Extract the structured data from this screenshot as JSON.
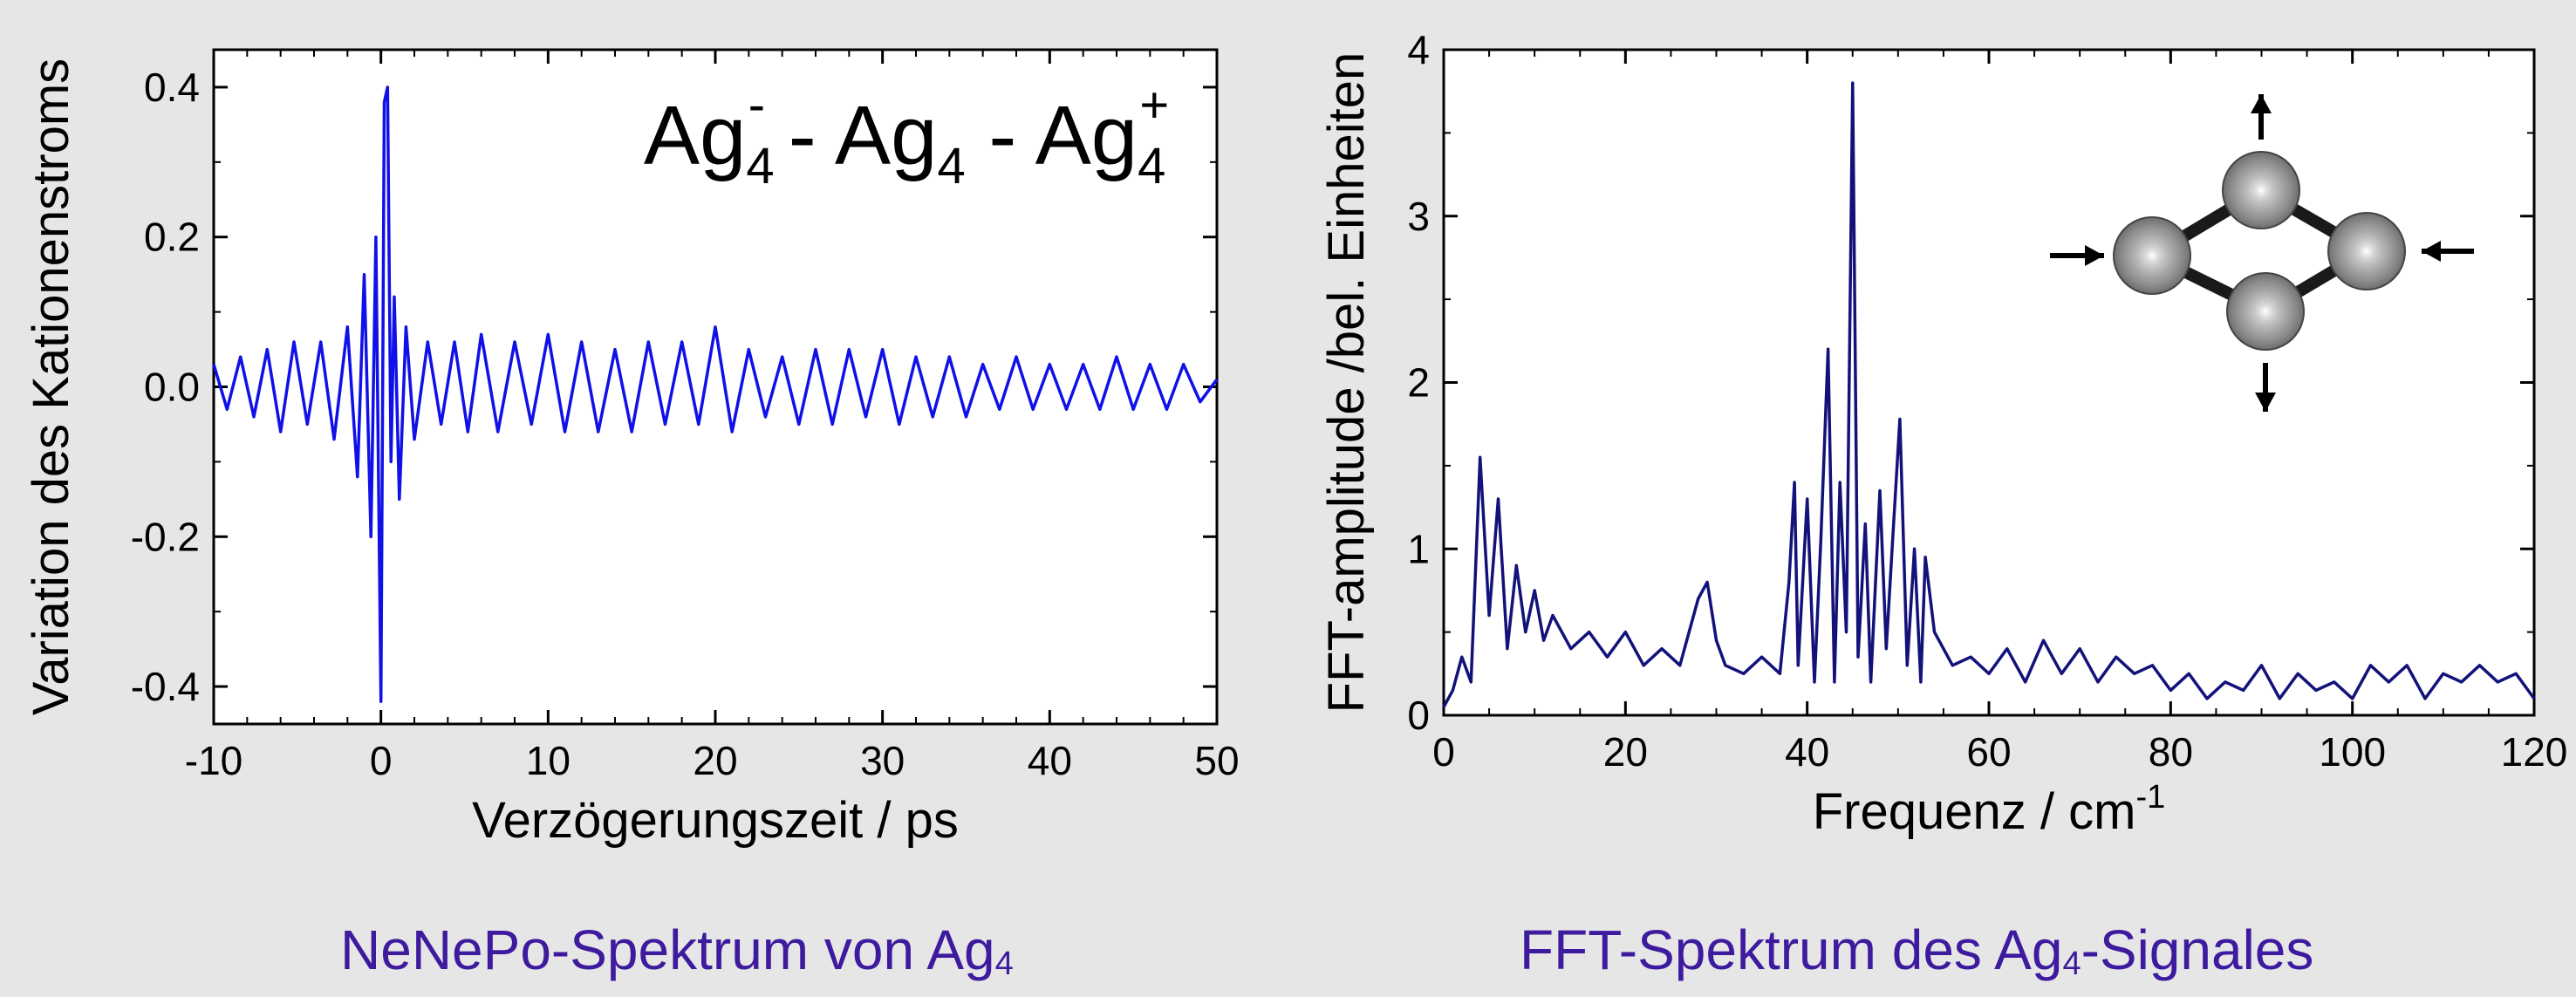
{
  "chart_data": [
    {
      "type": "line",
      "xlabel": "Verzögerungszeit / ps",
      "ylabel": "Variation des Kationenstroms",
      "xlim": [
        -10,
        50
      ],
      "ylim": [
        -0.45,
        0.45
      ],
      "xticks": [
        "-10",
        "0",
        "10",
        "20",
        "30",
        "40",
        "50"
      ],
      "yticks": [
        "0.4",
        "0.2",
        "0.0",
        "-0.2",
        "-0.4"
      ],
      "grid": false,
      "annotation": {
        "base": "Ag",
        "sub": "4",
        "charges": [
          "-",
          "",
          "+"
        ],
        "separator": " - "
      },
      "series": [
        {
          "color": "#1010e8",
          "x": [
            -10,
            -9.2,
            -8.4,
            -7.6,
            -6.8,
            -6,
            -5.2,
            -4.4,
            -3.6,
            -2.8,
            -2,
            -1.4,
            -1,
            -0.6,
            -0.3,
            0,
            0.2,
            0.4,
            0.6,
            0.8,
            1.1,
            1.5,
            2,
            2.8,
            3.6,
            4.4,
            5.2,
            6,
            7,
            8,
            9,
            10,
            11,
            12,
            13,
            14,
            15,
            16,
            17,
            18,
            19,
            20,
            21,
            22,
            23,
            24,
            25,
            26,
            27,
            28,
            29,
            30,
            31,
            32,
            33,
            34,
            35,
            36,
            37,
            38,
            39,
            40,
            41,
            42,
            43,
            44,
            45,
            46,
            47,
            48,
            49,
            50
          ],
          "y": [
            0.03,
            -0.03,
            0.04,
            -0.04,
            0.05,
            -0.06,
            0.06,
            -0.05,
            0.06,
            -0.07,
            0.08,
            -0.12,
            0.15,
            -0.2,
            0.2,
            -0.42,
            0.38,
            0.4,
            -0.1,
            0.12,
            -0.15,
            0.08,
            -0.07,
            0.06,
            -0.05,
            0.06,
            -0.06,
            0.07,
            -0.06,
            0.06,
            -0.05,
            0.07,
            -0.06,
            0.06,
            -0.06,
            0.05,
            -0.06,
            0.06,
            -0.05,
            0.06,
            -0.05,
            0.08,
            -0.06,
            0.05,
            -0.04,
            0.04,
            -0.05,
            0.05,
            -0.05,
            0.05,
            -0.04,
            0.05,
            -0.05,
            0.04,
            -0.04,
            0.04,
            -0.04,
            0.03,
            -0.03,
            0.04,
            -0.03,
            0.03,
            -0.03,
            0.03,
            -0.03,
            0.04,
            -0.03,
            0.03,
            -0.03,
            0.03,
            -0.02,
            0.01
          ]
        }
      ]
    },
    {
      "type": "line",
      "xlabel": "Frequenz / cm",
      "xlabel_sup": "-1",
      "ylabel": "FFT-amplitude /bel. Einheiten",
      "xlim": [
        0,
        120
      ],
      "ylim": [
        0,
        4
      ],
      "xticks": [
        "0",
        "20",
        "40",
        "60",
        "80",
        "100",
        "120"
      ],
      "yticks": [
        "0",
        "1",
        "2",
        "3",
        "4"
      ],
      "grid": false,
      "series": [
        {
          "color": "#12127a",
          "x": [
            0,
            1,
            2,
            3,
            4,
            5,
            6,
            7,
            8,
            9,
            10,
            11,
            12,
            14,
            16,
            18,
            20,
            22,
            24,
            26,
            28,
            29,
            30,
            31,
            33,
            35,
            37,
            38,
            38.6,
            39,
            40,
            40.8,
            41.5,
            42.3,
            43,
            43.6,
            44.3,
            45,
            45.6,
            46.4,
            47,
            48,
            48.7,
            49.4,
            50.2,
            51,
            51.8,
            52.5,
            53,
            54,
            56,
            58,
            60,
            62,
            64,
            66,
            68,
            70,
            72,
            74,
            76,
            78,
            80,
            82,
            84,
            86,
            88,
            90,
            92,
            94,
            96,
            98,
            100,
            102,
            104,
            106,
            108,
            110,
            112,
            114,
            116,
            118,
            120
          ],
          "y": [
            0.05,
            0.15,
            0.35,
            0.2,
            1.55,
            0.6,
            1.3,
            0.4,
            0.9,
            0.5,
            0.75,
            0.45,
            0.6,
            0.4,
            0.5,
            0.35,
            0.5,
            0.3,
            0.4,
            0.3,
            0.7,
            0.8,
            0.45,
            0.3,
            0.25,
            0.35,
            0.25,
            0.8,
            1.4,
            0.3,
            1.3,
            0.2,
            1.05,
            2.2,
            0.2,
            1.4,
            0.5,
            3.8,
            0.35,
            1.15,
            0.2,
            1.35,
            0.4,
            1.05,
            1.78,
            0.3,
            1.0,
            0.2,
            0.95,
            0.5,
            0.3,
            0.35,
            0.25,
            0.4,
            0.2,
            0.45,
            0.25,
            0.4,
            0.2,
            0.35,
            0.25,
            0.3,
            0.15,
            0.25,
            0.1,
            0.2,
            0.15,
            0.3,
            0.1,
            0.25,
            0.15,
            0.2,
            0.1,
            0.3,
            0.2,
            0.3,
            0.1,
            0.25,
            0.2,
            0.3,
            0.2,
            0.25,
            0.1
          ]
        }
      ]
    }
  ],
  "captions": {
    "left": {
      "text": "NeNePo-Spektrum von Ag",
      "sub": "4"
    },
    "right": {
      "text": "FFT-Spektrum des Ag",
      "sub": "4",
      "suffix": "-Signales"
    }
  }
}
